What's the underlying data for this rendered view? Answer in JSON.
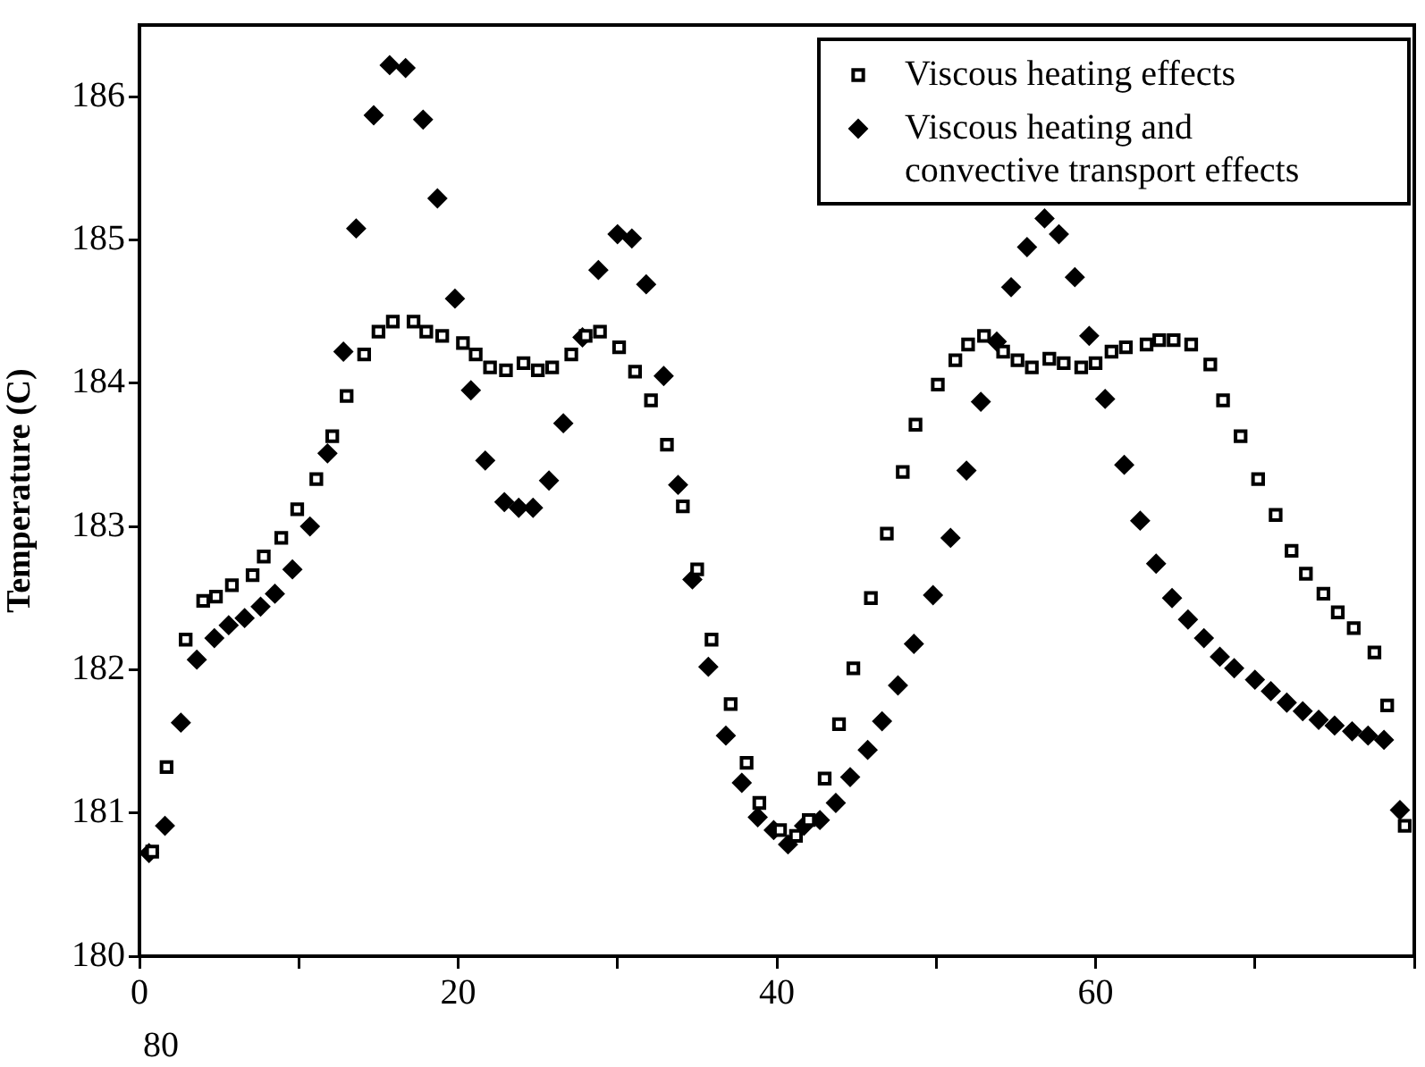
{
  "chart_data": {
    "type": "scatter",
    "ylabel": "Temperature (C)",
    "xlim": [
      0,
      80
    ],
    "xticks": [
      0,
      {
        "value": 10,
        "label": null
      },
      20,
      {
        "value": 30,
        "label": null
      },
      40,
      {
        "value": 50,
        "label": null
      },
      60,
      {
        "value": 70,
        "label": null
      },
      {
        "value": 80,
        "label": null
      }
    ],
    "ylim": [
      180,
      186.5
    ],
    "yticks": [
      180,
      181,
      182,
      183,
      184,
      185,
      186
    ],
    "grid": false,
    "legend": "top right",
    "annotations": [
      "80"
    ],
    "series": [
      {
        "name": "Viscous heating effects",
        "color": "#000000",
        "marker": "square",
        "x": [
          0.8,
          1.7,
          2.9,
          4.0,
          4.8,
          5.8,
          7.1,
          7.8,
          8.9,
          9.9,
          11.1,
          12.1,
          13.0,
          14.1,
          15.0,
          15.9,
          17.2,
          18.0,
          19.0,
          20.3,
          21.1,
          22.0,
          23.0,
          24.1,
          25.0,
          25.9,
          27.1,
          28.0,
          28.9,
          30.1,
          31.1,
          32.1,
          33.1,
          34.1,
          35.0,
          35.9,
          37.1,
          38.1,
          38.9,
          40.2,
          41.2,
          42.0,
          43.0,
          43.9,
          44.8,
          45.9,
          46.9,
          47.9,
          48.7,
          50.1,
          51.2,
          52.0,
          53.0,
          54.2,
          55.1,
          56.0,
          57.1,
          58.0,
          59.1,
          60.0,
          61.0,
          61.9,
          63.2,
          64.0,
          64.9,
          66.0,
          67.2,
          68.0,
          69.1,
          70.2,
          71.3,
          72.3,
          73.2,
          74.3,
          75.2,
          76.2,
          77.5,
          78.3,
          79.4
        ],
        "values": [
          180.73,
          181.32,
          182.21,
          182.48,
          182.51,
          182.59,
          182.66,
          182.79,
          182.92,
          183.12,
          183.33,
          183.63,
          183.91,
          184.2,
          184.36,
          184.43,
          184.43,
          184.36,
          184.33,
          184.28,
          184.2,
          184.11,
          184.09,
          184.14,
          184.09,
          184.11,
          184.2,
          184.33,
          184.36,
          184.25,
          184.08,
          183.88,
          183.57,
          183.14,
          182.7,
          182.21,
          181.76,
          181.35,
          181.07,
          180.88,
          180.84,
          180.95,
          181.24,
          181.62,
          182.01,
          182.5,
          182.95,
          183.38,
          183.71,
          183.99,
          184.16,
          184.27,
          184.33,
          184.22,
          184.16,
          184.11,
          184.17,
          184.14,
          184.11,
          184.14,
          184.22,
          184.25,
          184.27,
          184.3,
          184.3,
          184.27,
          184.13,
          183.88,
          183.63,
          183.33,
          183.08,
          182.83,
          182.67,
          182.53,
          182.4,
          182.29,
          182.12,
          181.75,
          180.91
        ]
      },
      {
        "name": "Viscous heating and convective transport effects",
        "color": "#000000",
        "marker": "diamond",
        "x": [
          0.6,
          1.6,
          2.6,
          3.6,
          4.7,
          5.6,
          6.6,
          7.6,
          8.5,
          9.6,
          10.7,
          11.8,
          12.8,
          13.6,
          14.7,
          15.7,
          16.7,
          17.8,
          18.7,
          19.8,
          20.8,
          21.7,
          22.9,
          23.8,
          24.7,
          25.7,
          26.6,
          27.8,
          28.8,
          30.0,
          30.9,
          31.8,
          32.9,
          33.8,
          34.7,
          35.7,
          36.8,
          37.8,
          38.8,
          39.8,
          40.7,
          41.7,
          42.7,
          43.7,
          44.6,
          45.7,
          46.6,
          47.6,
          48.6,
          49.8,
          50.9,
          51.9,
          52.8,
          53.8,
          54.7,
          55.7,
          56.8,
          57.7,
          58.7,
          59.6,
          60.6,
          61.8,
          62.8,
          63.8,
          64.8,
          65.8,
          66.8,
          67.8,
          68.7,
          70.0,
          71.0,
          72.0,
          73.0,
          74.0,
          75.0,
          76.1,
          77.1,
          78.1,
          79.1
        ],
        "values": [
          180.72,
          180.91,
          181.63,
          182.07,
          182.22,
          182.31,
          182.36,
          182.44,
          182.53,
          182.7,
          183.0,
          183.51,
          184.22,
          185.08,
          185.87,
          186.22,
          186.2,
          185.84,
          185.29,
          184.59,
          183.95,
          183.46,
          183.17,
          183.13,
          183.13,
          183.32,
          183.72,
          184.32,
          184.79,
          185.04,
          185.01,
          184.69,
          184.05,
          183.29,
          182.63,
          182.02,
          181.54,
          181.21,
          180.97,
          180.88,
          180.78,
          180.91,
          180.95,
          181.07,
          181.25,
          181.44,
          181.64,
          181.89,
          182.18,
          182.52,
          182.92,
          183.39,
          183.87,
          184.29,
          184.67,
          184.95,
          185.15,
          185.04,
          184.74,
          184.33,
          183.89,
          183.43,
          183.04,
          182.74,
          182.5,
          182.35,
          182.22,
          182.09,
          182.01,
          181.93,
          181.85,
          181.77,
          181.71,
          181.65,
          181.61,
          181.57,
          181.54,
          181.51,
          181.02
        ]
      }
    ]
  }
}
